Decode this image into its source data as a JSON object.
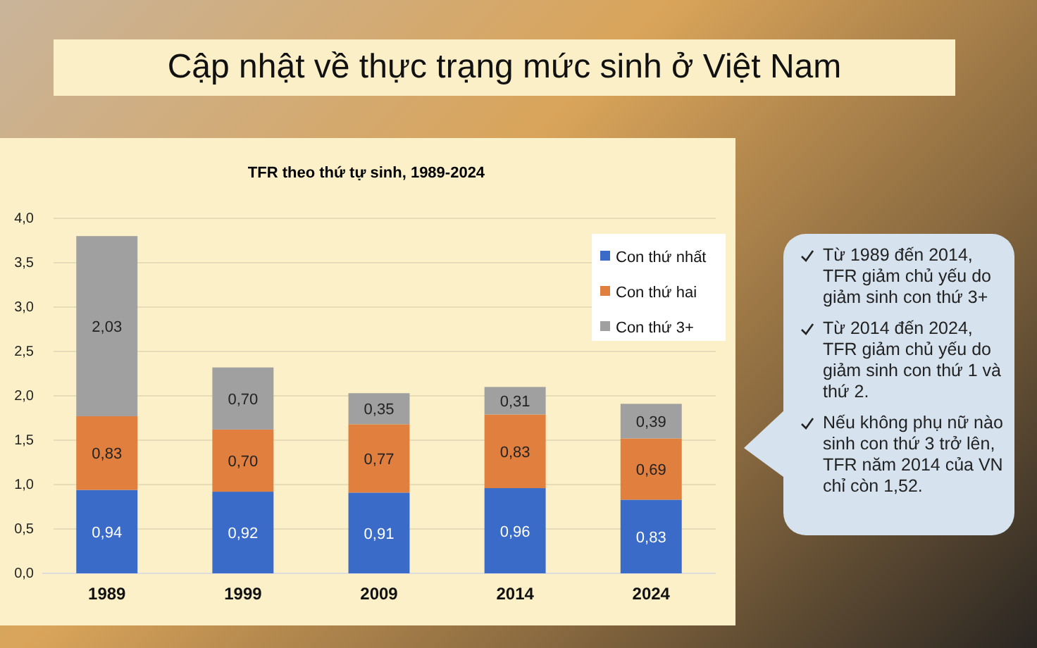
{
  "chart_data": {
    "type": "bar",
    "title": "Cập nhật về thực trạng mức sinh ở Việt Nam",
    "subtitle": "TFR theo thứ tự sinh, 1989-2024",
    "categories": [
      "1989",
      "1999",
      "2009",
      "2014",
      "2024"
    ],
    "series": [
      {
        "name": "Con thứ nhất",
        "color": "#3a6bc8",
        "values": [
          0.94,
          0.92,
          0.91,
          0.96,
          0.83
        ],
        "value_labels": [
          "0,94",
          "0,92",
          "0,91",
          "0,96",
          "0,83"
        ]
      },
      {
        "name": "Con thứ hai",
        "color": "#e07f3e",
        "values": [
          0.83,
          0.7,
          0.77,
          0.83,
          0.69
        ],
        "value_labels": [
          "0,83",
          "0,70",
          "0,77",
          "0,83",
          "0,69"
        ]
      },
      {
        "name": "Con thứ 3+",
        "color": "#a0a0a0",
        "values": [
          2.03,
          0.7,
          0.35,
          0.31,
          0.39
        ],
        "value_labels": [
          "2,03",
          "0,70",
          "0,35",
          "0,31",
          "0,39"
        ]
      }
    ],
    "stacked": true,
    "grid": "y",
    "legend": "top right",
    "ylim": [
      0,
      4
    ],
    "yticks": [
      {
        "value": 0,
        "label": "0,0"
      },
      {
        "value": 0.5,
        "label": "0,5"
      },
      {
        "value": 1,
        "label": "1,0"
      },
      {
        "value": 1.5,
        "label": "1,5"
      },
      {
        "value": 2,
        "label": "2,0"
      },
      {
        "value": 2.5,
        "label": "2,5"
      },
      {
        "value": 3,
        "label": "3,0"
      },
      {
        "value": 3.5,
        "label": "3,5"
      },
      {
        "value": 4,
        "label": "4,0"
      }
    ],
    "annotations": [
      "Từ 1989 đến 2014, TFR giảm chủ yếu do giảm sinh con thứ 3+",
      "Từ 2014 đến 2024, TFR giảm chủ yếu do giảm sinh con thứ 1 và thứ 2.",
      "Nếu không phụ nữ nào sinh con thứ 3 trở lên, TFR năm 2014 của VN chỉ còn 1,52."
    ]
  }
}
